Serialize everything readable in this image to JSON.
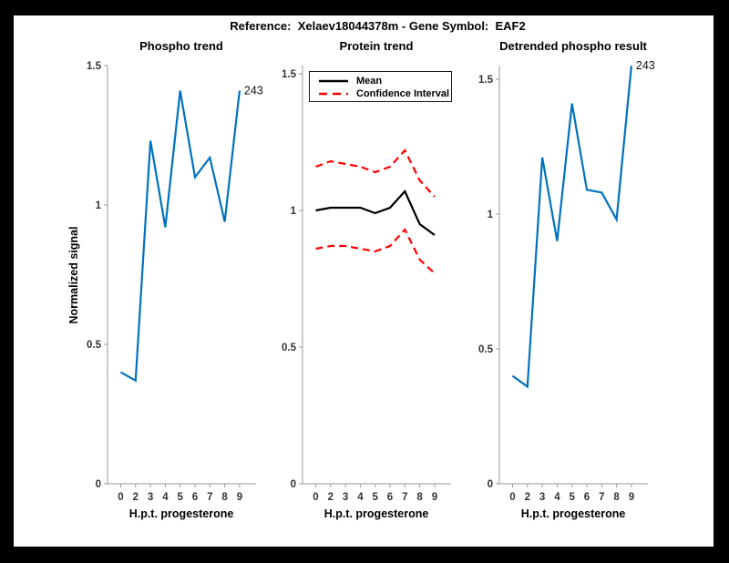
{
  "window": {
    "title": "Reference:  Xelaev18044378m - Gene Symbol:  EAF2"
  },
  "colors": {
    "figure_bg": "#FFFFFF",
    "page_border": "#000000",
    "axis_line": "#999999",
    "tick_text": "#333333",
    "annotation_text": "#111111",
    "blue": "#0072BD",
    "red": "#FF0000",
    "black": "#000000"
  },
  "chart_data": [
    {
      "type": "line",
      "title": "Phospho trend",
      "xlabel": "H.p.t. progesterone",
      "ylabel": "Normalized signal",
      "x_ticklabels": [
        "0",
        "2",
        "3",
        "4",
        "5",
        "6",
        "7",
        "8",
        "9"
      ],
      "y_ticks": [
        0,
        0.5,
        1,
        1.5
      ],
      "y_ticklabels": [
        "0",
        "0.5",
        "1",
        "1.5"
      ],
      "ylim": [
        0,
        1.5
      ],
      "grid": false,
      "series": [
        {
          "name": "phospho-signal",
          "color": "#0072BD",
          "style": "solid",
          "values": [
            0.4,
            0.37,
            1.23,
            0.92,
            1.41,
            1.1,
            1.17,
            0.94,
            1.41
          ]
        }
      ],
      "annotation": {
        "text": "243",
        "at_index": 8
      }
    },
    {
      "type": "line",
      "title": "Protein trend",
      "xlabel": "H.p.t. progesterone",
      "ylabel": "",
      "x_ticklabels": [
        "0",
        "2",
        "3",
        "4",
        "5",
        "6",
        "7",
        "8",
        "9"
      ],
      "y_ticks": [
        0,
        0.5,
        1,
        1.5
      ],
      "y_ticklabels": [
        "0",
        "0.5",
        "1",
        "1.5"
      ],
      "ylim": [
        0,
        1.53
      ],
      "grid": false,
      "legend": {
        "position": "top-left",
        "entries": [
          {
            "label": "Mean",
            "color": "#000000",
            "style": "solid"
          },
          {
            "label": "Confidence Interval",
            "color": "#FF0000",
            "style": "dashed"
          }
        ]
      },
      "series": [
        {
          "name": "protein-mean",
          "color": "#000000",
          "style": "solid",
          "values": [
            1.0,
            1.01,
            1.01,
            1.01,
            0.99,
            1.01,
            1.07,
            0.95,
            0.91
          ]
        },
        {
          "name": "ci-upper",
          "color": "#FF0000",
          "style": "dashed",
          "values": [
            1.16,
            1.18,
            1.17,
            1.16,
            1.14,
            1.16,
            1.22,
            1.11,
            1.05
          ]
        },
        {
          "name": "ci-lower",
          "color": "#FF0000",
          "style": "dashed",
          "values": [
            0.86,
            0.87,
            0.87,
            0.86,
            0.85,
            0.87,
            0.93,
            0.82,
            0.77
          ]
        }
      ]
    },
    {
      "type": "line",
      "title": "Detrended phospho result",
      "xlabel": "H.p.t. progesterone",
      "ylabel": "",
      "x_ticklabels": [
        "0",
        "2",
        "3",
        "4",
        "5",
        "6",
        "7",
        "8",
        "9"
      ],
      "y_ticks": [
        0,
        0.5,
        1,
        1.5
      ],
      "y_ticklabels": [
        "0",
        "0.5",
        "1",
        "1.5"
      ],
      "ylim": [
        0,
        1.55
      ],
      "grid": false,
      "series": [
        {
          "name": "detrended-phospho",
          "color": "#0072BD",
          "style": "solid",
          "values": [
            0.4,
            0.36,
            1.21,
            0.9,
            1.41,
            1.09,
            1.08,
            0.98,
            1.55
          ]
        }
      ],
      "annotation": {
        "text": "243",
        "at_index": 8
      }
    }
  ]
}
